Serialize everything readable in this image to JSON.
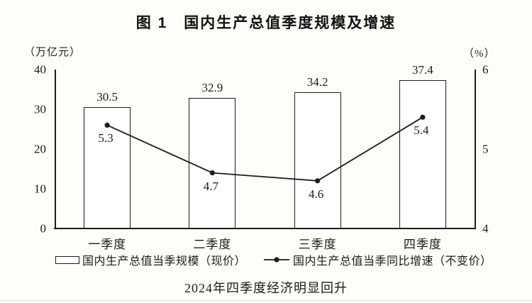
{
  "title": "图 1　国内生产总值季度规模及增速",
  "caption": "2024年四季度经济明显回升",
  "left_axis": {
    "unit": "（万亿元）",
    "ticks": [
      "40",
      "30",
      "20",
      "10",
      "0"
    ]
  },
  "right_axis": {
    "unit": "（%）",
    "ticks": [
      "6",
      "5",
      "4"
    ]
  },
  "legend": {
    "bar_label": "国内生产总值当季规模（现价）",
    "line_label": "国内生产总值当季同比增速（不变价）"
  },
  "colors": {
    "ink": "#1c1c1c",
    "bar_fill": "#ffffff",
    "background": "#fdfdfb"
  },
  "chart_data": {
    "type": "bar",
    "categories": [
      "一季度",
      "二季度",
      "三季度",
      "四季度"
    ],
    "series": [
      {
        "name": "国内生产总值当季规模（现价）",
        "type": "bar",
        "axis": "left",
        "values": [
          30.5,
          32.9,
          34.2,
          37.4
        ]
      },
      {
        "name": "国内生产总值当季同比增速（不变价）",
        "type": "line",
        "axis": "right",
        "values": [
          5.3,
          4.7,
          4.6,
          5.4
        ]
      }
    ],
    "title": "图 1　国内生产总值季度规模及增速",
    "xlabel": "",
    "ylabel_left": "万亿元",
    "ylabel_right": "%",
    "left_ylim": [
      0,
      40
    ],
    "right_ylim": [
      4,
      6
    ],
    "grid": false,
    "legend_position": "bottom"
  }
}
